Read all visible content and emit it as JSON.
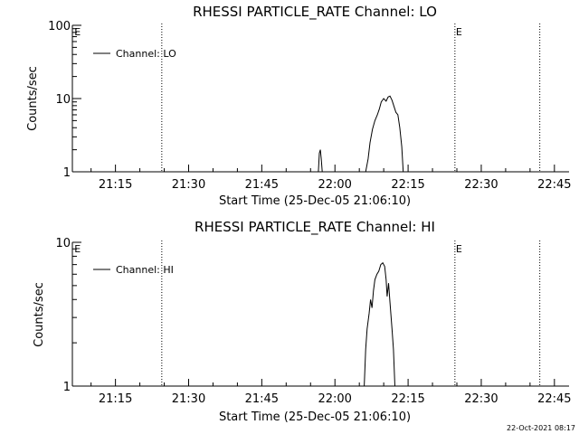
{
  "footer": {
    "timestamp": "22-Oct-2021 08:17"
  },
  "chart_data": [
    {
      "type": "line",
      "title": "RHESSI PARTICLE_RATE Channel: LO",
      "xlabel": "Start Time (25-Dec-05 21:06:10)",
      "ylabel": "Counts/sec",
      "yscale": "log",
      "ylim": [
        1,
        100
      ],
      "y_ticks": [
        1,
        10,
        100
      ],
      "y_tick_labels": [
        "1",
        "10",
        "100"
      ],
      "xlim": [
        "21:06:10",
        "22:48:00"
      ],
      "x_ticks": [
        "21:15",
        "21:30",
        "21:45",
        "22:00",
        "22:15",
        "22:30",
        "22:45"
      ],
      "x_ticks_min": [
        1275,
        1290,
        1305,
        1320,
        1335,
        1350,
        1365
      ],
      "event_lines_min": [
        1284.5,
        1344.6,
        1362.0
      ],
      "event_markers": [
        {
          "label": "E",
          "x_min": 1266.4
        },
        {
          "label": "E",
          "x_min": 1344.6
        }
      ],
      "legend": {
        "entry": "Channel: LO",
        "position": "upper-left"
      },
      "series": [
        {
          "name": "Channel: LO",
          "segments": [
            [
              [
                1316.6,
                1
              ],
              [
                1316.8,
                1.8
              ],
              [
                1317.0,
                2.0
              ],
              [
                1317.2,
                1.5
              ],
              [
                1317.4,
                1
              ]
            ],
            [
              [
                1326.3,
                1
              ],
              [
                1326.8,
                1.5
              ],
              [
                1327.2,
                2.5
              ],
              [
                1327.7,
                3.8
              ],
              [
                1328.2,
                5.0
              ],
              [
                1328.7,
                6.0
              ],
              [
                1329.1,
                7.2
              ],
              [
                1329.5,
                9.0
              ],
              [
                1330.0,
                10.0
              ],
              [
                1330.5,
                9.2
              ],
              [
                1330.9,
                10.5
              ],
              [
                1331.3,
                10.8
              ],
              [
                1331.7,
                9.5
              ],
              [
                1332.1,
                7.8
              ],
              [
                1332.5,
                6.5
              ],
              [
                1332.9,
                6.0
              ],
              [
                1333.3,
                4.0
              ],
              [
                1333.7,
                2.2
              ],
              [
                1334.0,
                1
              ]
            ]
          ]
        }
      ]
    },
    {
      "type": "line",
      "title": "RHESSI PARTICLE_RATE Channel: HI",
      "xlabel": "Start Time (25-Dec-05 21:06:10)",
      "ylabel": "Counts/sec",
      "yscale": "log",
      "ylim": [
        1,
        10
      ],
      "y_ticks": [
        1,
        10
      ],
      "y_tick_labels": [
        "1",
        "10"
      ],
      "xlim": [
        "21:06:10",
        "22:48:00"
      ],
      "x_ticks": [
        "21:15",
        "21:30",
        "21:45",
        "22:00",
        "22:15",
        "22:30",
        "22:45"
      ],
      "x_ticks_min": [
        1275,
        1290,
        1305,
        1320,
        1335,
        1350,
        1365
      ],
      "event_lines_min": [
        1284.5,
        1344.6,
        1362.0
      ],
      "event_markers": [
        {
          "label": "E",
          "x_min": 1266.4
        },
        {
          "label": "E",
          "x_min": 1344.6
        }
      ],
      "legend": {
        "entry": "Channel: HI",
        "position": "upper-left"
      },
      "series": [
        {
          "name": "Channel: HI",
          "segments": [
            [
              [
                1326.0,
                1
              ],
              [
                1326.3,
                1.8
              ],
              [
                1326.6,
                2.5
              ],
              [
                1327.0,
                3.2
              ],
              [
                1327.3,
                4.0
              ],
              [
                1327.6,
                3.5
              ],
              [
                1327.9,
                4.6
              ],
              [
                1328.2,
                5.5
              ],
              [
                1328.6,
                6.0
              ],
              [
                1329.0,
                6.3
              ],
              [
                1329.4,
                7.0
              ],
              [
                1329.8,
                7.2
              ],
              [
                1330.2,
                6.8
              ],
              [
                1330.5,
                5.5
              ],
              [
                1330.7,
                4.2
              ],
              [
                1331.0,
                5.2
              ],
              [
                1331.3,
                3.8
              ],
              [
                1331.7,
                2.5
              ],
              [
                1332.0,
                1.8
              ],
              [
                1332.3,
                1
              ]
            ]
          ]
        }
      ]
    }
  ]
}
